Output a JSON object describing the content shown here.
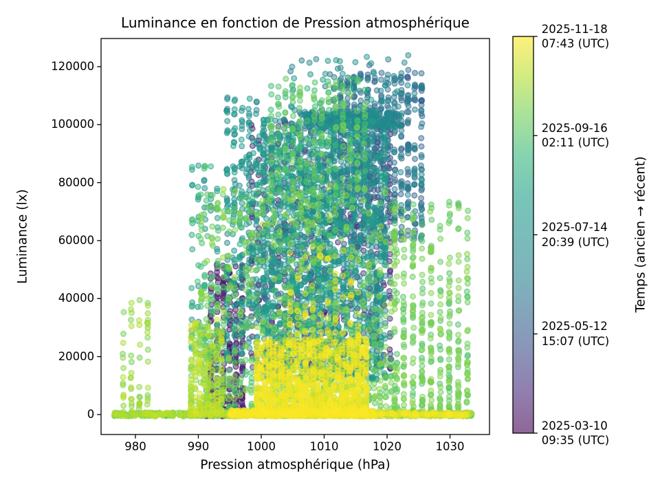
{
  "figure": {
    "title": "Luminance en fonction de Pression atmosphérique"
  },
  "x_axis": {
    "label": "Pression atmosphérique (hPa)",
    "tick_values": [
      980,
      990,
      1000,
      1010,
      1020,
      1030
    ],
    "tick_labels": [
      "980",
      "990",
      "1000",
      "1010",
      "1020",
      "1030"
    ],
    "range": [
      974.54,
      1036.28
    ]
  },
  "y_axis": {
    "label": "Luminance (lx)",
    "tick_values": [
      0,
      20000,
      40000,
      60000,
      80000,
      100000,
      120000
    ],
    "tick_labels": [
      "0",
      "20000",
      "40000",
      "60000",
      "80000",
      "100000",
      "120000"
    ],
    "range": [
      -6880,
      129714
    ]
  },
  "colorbar": {
    "label": "Temps (ancien → récent)",
    "colormap": "viridis",
    "alpha": 0.6,
    "viridis_hex": [
      "#440154",
      "#482878",
      "#3e4a89",
      "#31688e",
      "#26828e",
      "#21918c",
      "#1f9e89",
      "#35b779",
      "#6ece58",
      "#b5de2b",
      "#fde725"
    ],
    "tick_labels_top_to_bottom": [
      {
        "line1": "2025-11-18",
        "line2": "07:43 (UTC)"
      },
      {
        "line1": "2025-09-16",
        "line2": "02:11 (UTC)"
      },
      {
        "line1": "2025-07-14",
        "line2": "20:39 (UTC)"
      },
      {
        "line1": "2025-05-12",
        "line2": "15:07 (UTC)"
      },
      {
        "line1": "2025-03-10",
        "line2": "09:35 (UTC)"
      }
    ]
  },
  "chart_data": {
    "type": "scatter",
    "title": "Luminance en fonction de Pression atmosphérique",
    "xlabel": "Pression atmosphérique (hPa)",
    "ylabel": "Luminance (lx)",
    "color_dimension_label": "Temps (ancien → récent)",
    "time_start": "2025-03-10 09:35 (UTC)",
    "time_end": "2025-11-18 07:43 (UTC)",
    "xlim": [
      974.54,
      1036.28
    ],
    "ylim": [
      -6880,
      129714
    ],
    "x_observed_range": [
      977,
      1033.5
    ],
    "y_observed_range": [
      0,
      124000
    ],
    "legend": "color encodes timestamp, viridis: purple = 2025-03 (ancien) to yellow = 2025-11 (récent)",
    "marker": {
      "radius_px": 3.8,
      "fill_opacity": 0.45,
      "stroke_opacity": 0.6,
      "stroke_width": 1.5
    },
    "seed": 20251118,
    "clusters": [
      {
        "name": "zero-band-left-sparse",
        "n": 260,
        "x": [
          976.4,
          995.0
        ],
        "y": [
          -600,
          700
        ],
        "t": [
          0.74,
          0.92
        ],
        "p": 1,
        "cols": 34,
        "jitter": 0.1
      },
      {
        "name": "zero-band-main",
        "n": 800,
        "x": [
          995.0,
          1033.6
        ],
        "y": [
          -600,
          800
        ],
        "t": [
          0.72,
          1.0
        ],
        "p": 1,
        "cols": 0,
        "jitter": 0
      },
      {
        "name": "zero-band-yellow-core",
        "n": 500,
        "x": [
          995.0,
          1018.0
        ],
        "y": [
          -600,
          1500
        ],
        "t": [
          0.93,
          1.0
        ],
        "p": 1,
        "cols": 0,
        "jitter": 0
      },
      {
        "name": "yellow-low-mass",
        "n": 1400,
        "x": [
          999.0,
          1017.0
        ],
        "y": [
          0,
          26000
        ],
        "t": [
          0.92,
          1.0
        ],
        "p": 2.2,
        "cols": 28,
        "jitter": 0.12
      },
      {
        "name": "yellow-mid-spikes",
        "n": 85,
        "x": [
          1004.0,
          1016.0
        ],
        "y": [
          24000,
          58000
        ],
        "t": [
          0.93,
          1.0
        ],
        "p": 1.6,
        "cols": 10,
        "jitter": 0.1
      },
      {
        "name": "yellowgreen-left-low",
        "n": 270,
        "x": [
          988.5,
          994.0
        ],
        "y": [
          0,
          33000
        ],
        "t": [
          0.8,
          0.95
        ],
        "p": 1.8,
        "cols": 8,
        "jitter": 0.1
      },
      {
        "name": "far-left-columns",
        "n": 70,
        "x": [
          977.4,
          982.6
        ],
        "y": [
          0,
          40000
        ],
        "t": [
          0.8,
          0.9
        ],
        "p": 1.6,
        "cols": 4,
        "jitter": 0.09
      },
      {
        "name": "green-wide",
        "n": 900,
        "x": [
          990.0,
          1022.0
        ],
        "y": [
          0,
          78000
        ],
        "t": [
          0.72,
          0.86
        ],
        "p": 1.5,
        "cols": 36,
        "jitter": 0.12
      },
      {
        "name": "green-high",
        "n": 260,
        "x": [
          1001.0,
          1017.0
        ],
        "y": [
          74000,
          116000
        ],
        "t": [
          0.7,
          0.82
        ],
        "p": 1,
        "cols": 14,
        "jitter": 0.12
      },
      {
        "name": "green-right-columns",
        "n": 430,
        "x": [
          1020.5,
          1033.5
        ],
        "y": [
          0,
          74000
        ],
        "t": [
          0.74,
          0.84
        ],
        "p": 1.5,
        "cols": 9,
        "jitter": 0.1
      },
      {
        "name": "teal-main-mass",
        "n": 1600,
        "x": [
          1000.0,
          1020.0
        ],
        "y": [
          12000,
          102000
        ],
        "t": [
          0.35,
          0.62
        ],
        "p": 1.1,
        "cols": 30,
        "jitter": 0.13
      },
      {
        "name": "teal-left-columns",
        "n": 260,
        "x": [
          994.0,
          1001.0
        ],
        "y": [
          18000,
          110000
        ],
        "t": [
          0.4,
          0.6
        ],
        "p": 1,
        "cols": 6,
        "jitter": 0.1
      },
      {
        "name": "teal-saturation-band",
        "n": 280,
        "x": [
          1006.0,
          1022.0
        ],
        "y": [
          99000,
          104500
        ],
        "t": [
          0.32,
          0.5
        ],
        "p": 1,
        "cols": 0,
        "jitter": 0
      },
      {
        "name": "blue-high",
        "n": 650,
        "x": [
          1011.0,
          1026.0
        ],
        "y": [
          60000,
          118000
        ],
        "t": [
          0.26,
          0.42
        ],
        "p": 1,
        "cols": 14,
        "jitter": 0.12
      },
      {
        "name": "top-outliers",
        "n": 55,
        "x": [
          1003.0,
          1024.0
        ],
        "y": [
          104000,
          124000
        ],
        "t": [
          0.3,
          0.55
        ],
        "p": 1,
        "cols": 0,
        "jitter": 0
      },
      {
        "name": "purple-mid",
        "n": 560,
        "x": [
          998.0,
          1021.0
        ],
        "y": [
          15000,
          102000
        ],
        "t": [
          0.02,
          0.2
        ],
        "p": 1.2,
        "cols": 22,
        "jitter": 0.12
      },
      {
        "name": "purple-left",
        "n": 280,
        "x": [
          991.5,
          997.5
        ],
        "y": [
          0,
          52000
        ],
        "t": [
          0.0,
          0.12
        ],
        "p": 1.5,
        "cols": 6,
        "jitter": 0.1
      },
      {
        "name": "purple-left-zero",
        "n": 120,
        "x": [
          990.5,
          997.5
        ],
        "y": [
          -600,
          1800
        ],
        "t": [
          0.0,
          0.1
        ],
        "p": 1,
        "cols": 0,
        "jitter": 0
      },
      {
        "name": "teal-mid-sparse",
        "n": 300,
        "x": [
          995.0,
          1012.0
        ],
        "y": [
          28000,
          96000
        ],
        "t": [
          0.45,
          0.65
        ],
        "p": 1,
        "cols": 16,
        "jitter": 0.12
      },
      {
        "name": "mixed-990",
        "n": 90,
        "x": [
          988.5,
          993.5
        ],
        "y": [
          20000,
          86000
        ],
        "t": [
          0.45,
          0.75
        ],
        "p": 1.2,
        "cols": 5,
        "jitter": 0.1
      }
    ]
  }
}
